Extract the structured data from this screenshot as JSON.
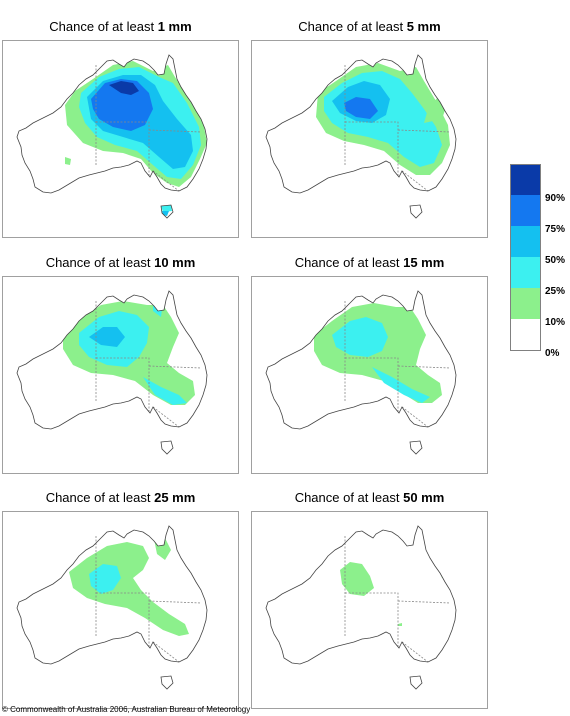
{
  "panels": [
    {
      "prefix": "Chance of at least",
      "amount": "1 mm",
      "level": 1
    },
    {
      "prefix": "Chance of at least",
      "amount": "5 mm",
      "level": 2
    },
    {
      "prefix": "Chance of at least",
      "amount": "10 mm",
      "level": 3
    },
    {
      "prefix": "Chance of at least",
      "amount": "15 mm",
      "level": 4
    },
    {
      "prefix": "Chance of at least",
      "amount": "25 mm",
      "level": 5
    },
    {
      "prefix": "Chance of at least",
      "amount": "50 mm",
      "level": 6
    }
  ],
  "legend": {
    "labels": [
      "90%",
      "75%",
      "50%",
      "25%",
      "10%",
      "0%"
    ],
    "colors": [
      "#0a3aa8",
      "#1478f0",
      "#14c0f0",
      "#3cf0f0",
      "#8cf08c",
      "#ffffff"
    ]
  },
  "copyright": "© Commonwealth of Australia 2006, Australian Bureau of Meteorology",
  "colors": {
    "land_outline": "#444444",
    "state_border": "#888888",
    "frame_border": "#a0a0a0"
  }
}
